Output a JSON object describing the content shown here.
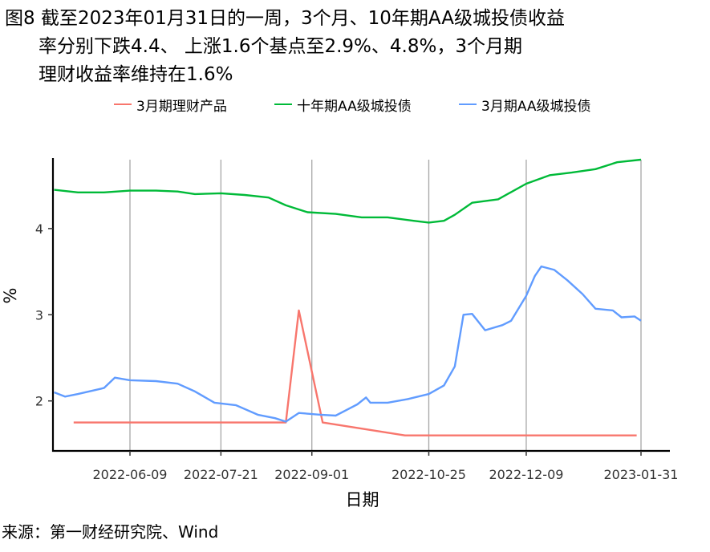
{
  "title_lines": [
    "图8  截至2023年01月31日的一周，3个月、10年期AA级城投债收益",
    "率分别下跌4.4、 上涨1.6个基点至2.9%、4.8%，3个月期",
    "理财收益率维持在1.6%"
  ],
  "source": "来源：第一财经研究院、Wind",
  "colors": {
    "red": "#F8766D",
    "green": "#00BA38",
    "blue": "#619CFF",
    "grid": "#A6A6A6"
  },
  "chart_data": {
    "type": "line",
    "xlabel": "日期",
    "ylabel": "%",
    "ylim": [
      1.42,
      4.93
    ],
    "x_ticks": [
      "2022-06-09",
      "2022-07-21",
      "2022-09-01",
      "2022-10-25",
      "2022-12-09",
      "2023-01-31"
    ],
    "y_ticks": [
      2,
      3,
      4
    ],
    "grid": "vertical gridlines at x ticks",
    "legend_position": "top",
    "series": [
      {
        "name": "3月期理财产品",
        "color": "#F8766D",
        "points": [
          [
            "2022-05-14",
            1.75
          ],
          [
            "2022-08-20",
            1.75
          ],
          [
            "2022-08-26",
            3.05
          ],
          [
            "2022-09-06",
            1.75
          ],
          [
            "2022-10-14",
            1.6
          ],
          [
            "2023-01-29",
            1.6
          ]
        ]
      },
      {
        "name": "十年期AA级城投债",
        "color": "#00BA38",
        "points": [
          [
            "2022-05-05",
            4.45
          ],
          [
            "2022-05-16",
            4.42
          ],
          [
            "2022-05-28",
            4.42
          ],
          [
            "2022-06-09",
            4.44
          ],
          [
            "2022-06-21",
            4.44
          ],
          [
            "2022-07-01",
            4.43
          ],
          [
            "2022-07-09",
            4.4
          ],
          [
            "2022-07-21",
            4.41
          ],
          [
            "2022-08-01",
            4.39
          ],
          [
            "2022-08-12",
            4.36
          ],
          [
            "2022-08-20",
            4.27
          ],
          [
            "2022-08-30",
            4.19
          ],
          [
            "2022-09-12",
            4.17
          ],
          [
            "2022-09-24",
            4.13
          ],
          [
            "2022-10-06",
            4.13
          ],
          [
            "2022-10-18",
            4.09
          ],
          [
            "2022-10-25",
            4.07
          ],
          [
            "2022-11-01",
            4.09
          ],
          [
            "2022-11-06",
            4.16
          ],
          [
            "2022-11-14",
            4.3
          ],
          [
            "2022-11-26",
            4.34
          ],
          [
            "2022-12-09",
            4.52
          ],
          [
            "2022-12-20",
            4.62
          ],
          [
            "2022-12-30",
            4.65
          ],
          [
            "2023-01-10",
            4.69
          ],
          [
            "2023-01-20",
            4.77
          ],
          [
            "2023-01-31",
            4.8
          ]
        ]
      },
      {
        "name": "3月期AA级城投债",
        "color": "#619CFF",
        "points": [
          [
            "2022-05-05",
            2.1
          ],
          [
            "2022-05-10",
            2.05
          ],
          [
            "2022-05-16",
            2.08
          ],
          [
            "2022-05-28",
            2.15
          ],
          [
            "2022-06-02",
            2.27
          ],
          [
            "2022-06-09",
            2.24
          ],
          [
            "2022-06-21",
            2.23
          ],
          [
            "2022-07-01",
            2.2
          ],
          [
            "2022-07-09",
            2.11
          ],
          [
            "2022-07-18",
            1.98
          ],
          [
            "2022-07-28",
            1.95
          ],
          [
            "2022-08-07",
            1.84
          ],
          [
            "2022-08-15",
            1.8
          ],
          [
            "2022-08-20",
            1.76
          ],
          [
            "2022-08-26",
            1.86
          ],
          [
            "2022-09-05",
            1.84
          ],
          [
            "2022-09-12",
            1.83
          ],
          [
            "2022-09-22",
            1.96
          ],
          [
            "2022-09-26",
            2.04
          ],
          [
            "2022-09-28",
            1.98
          ],
          [
            "2022-10-06",
            1.98
          ],
          [
            "2022-10-15",
            2.02
          ],
          [
            "2022-10-25",
            2.08
          ],
          [
            "2022-11-01",
            2.18
          ],
          [
            "2022-11-06",
            2.4
          ],
          [
            "2022-11-10",
            3.0
          ],
          [
            "2022-11-14",
            3.01
          ],
          [
            "2022-11-20",
            2.82
          ],
          [
            "2022-11-28",
            2.88
          ],
          [
            "2022-12-02",
            2.93
          ],
          [
            "2022-12-09",
            3.22
          ],
          [
            "2022-12-13",
            3.45
          ],
          [
            "2022-12-16",
            3.56
          ],
          [
            "2022-12-22",
            3.52
          ],
          [
            "2022-12-28",
            3.4
          ],
          [
            "2023-01-04",
            3.24
          ],
          [
            "2023-01-10",
            3.07
          ],
          [
            "2023-01-18",
            3.05
          ],
          [
            "2023-01-22",
            2.97
          ],
          [
            "2023-01-28",
            2.98
          ],
          [
            "2023-01-31",
            2.93
          ]
        ]
      }
    ]
  }
}
